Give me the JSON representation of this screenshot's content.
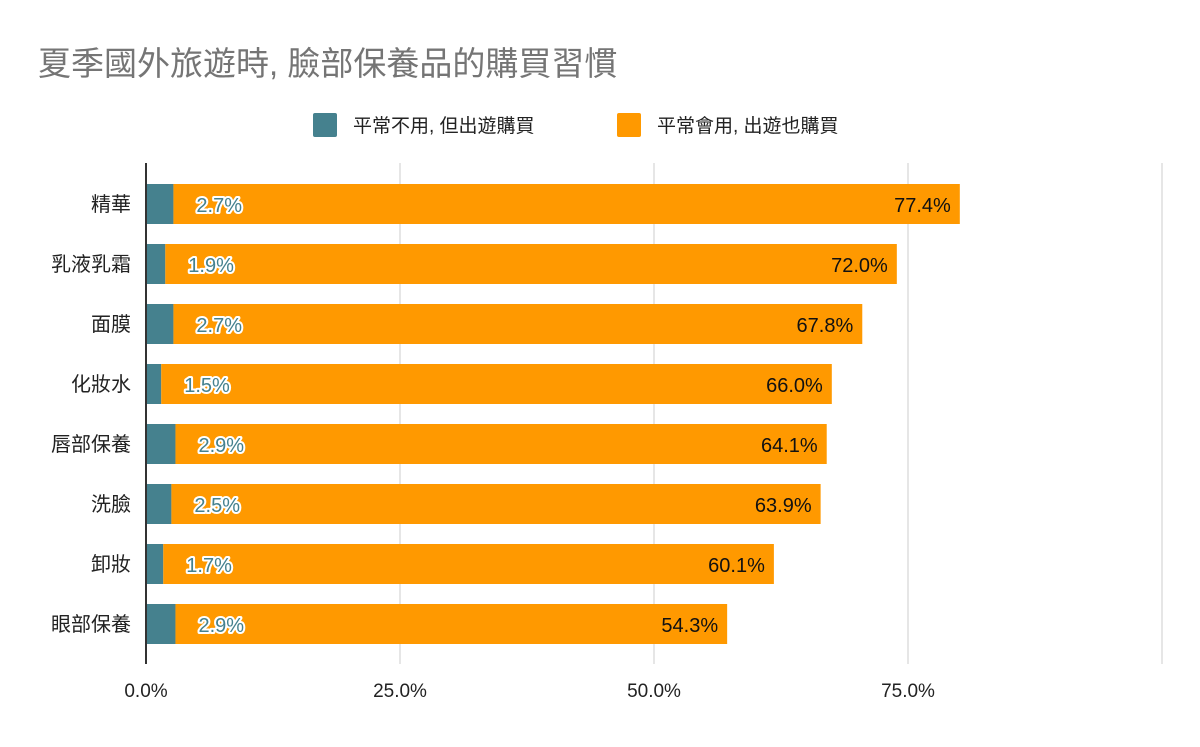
{
  "chart_data": {
    "type": "bar",
    "orientation": "horizontal",
    "stacked": true,
    "title": "夏季國外旅遊時, 臉部保養品的購買習慣",
    "xlabel": "",
    "ylabel": "",
    "xlim": [
      0,
      100
    ],
    "x_ticks": [
      "0.0%",
      "25.0%",
      "50.0%",
      "75.0%"
    ],
    "x_tick_values": [
      0,
      25,
      50,
      75
    ],
    "grid": true,
    "legend_position": "top",
    "categories": [
      "精華",
      "乳液乳霜",
      "面膜",
      "化妝水",
      "唇部保養",
      "洗臉",
      "卸妝",
      "眼部保養"
    ],
    "series": [
      {
        "name": "平常不用, 但出遊購買",
        "color": "#45818e",
        "values": [
          2.7,
          1.9,
          2.7,
          1.5,
          2.9,
          2.5,
          1.7,
          2.9
        ]
      },
      {
        "name": "平常會用, 出遊也購買",
        "color": "#ff9900",
        "values": [
          77.4,
          72.0,
          67.8,
          66.0,
          64.1,
          63.9,
          60.1,
          54.3
        ]
      }
    ]
  }
}
